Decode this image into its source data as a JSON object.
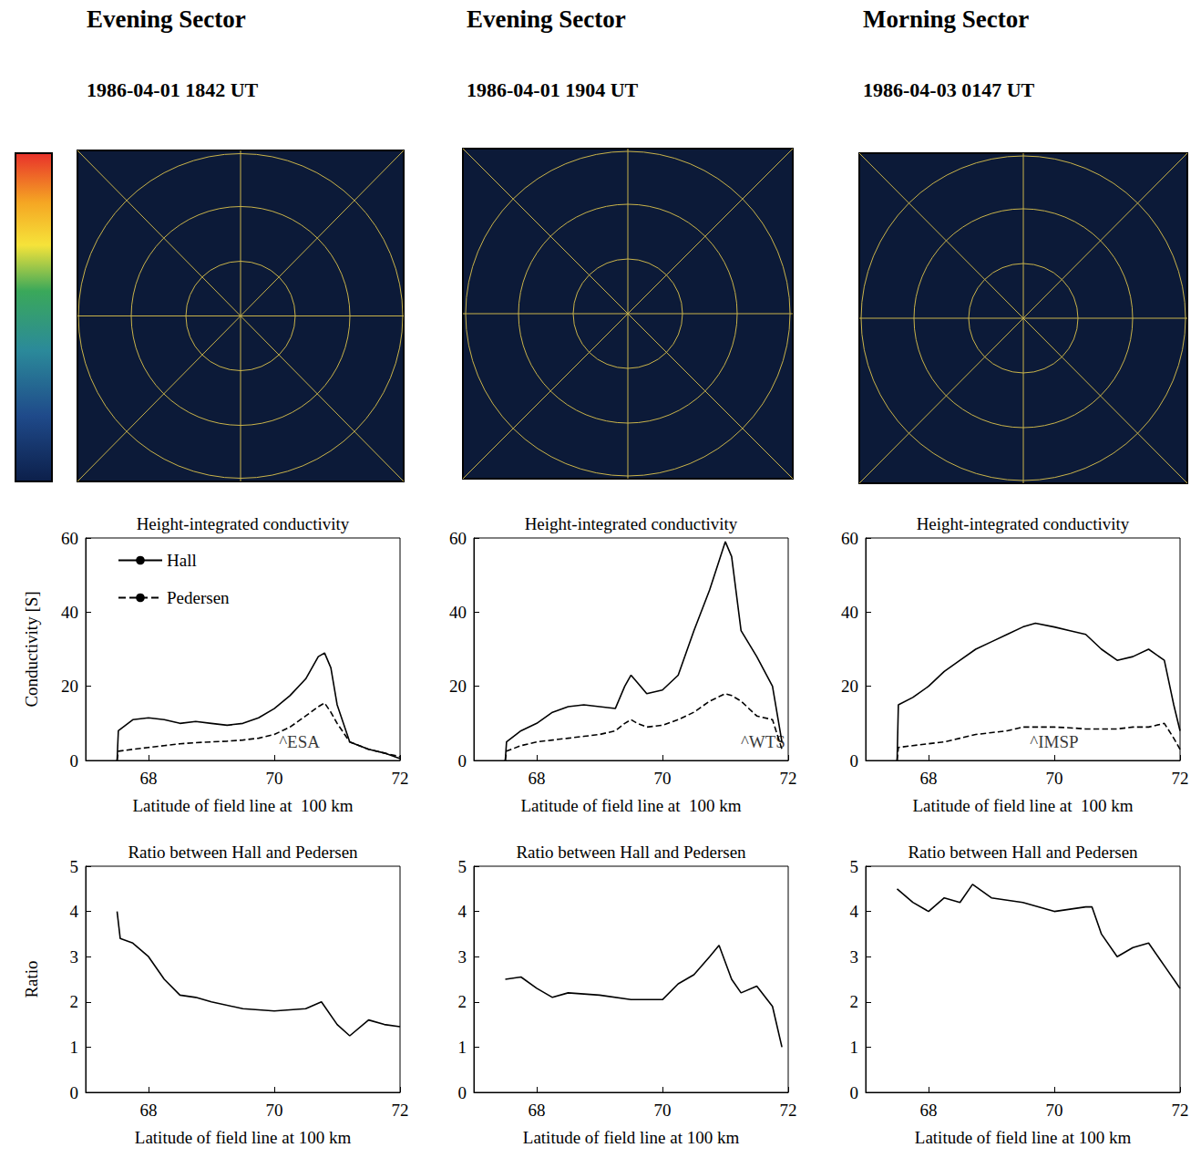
{
  "columns": [
    {
      "sector": "Evening Sector",
      "time": "1986-04-01 1842 UT"
    },
    {
      "sector": "Evening Sector",
      "time": "1986-04-01 1904 UT"
    },
    {
      "sector": "Morning Sector",
      "time": "1986-04-03 0147 UT"
    }
  ],
  "chart_data": [
    {
      "type": "line",
      "title": "Height-integrated conductivity",
      "x_label": "Latitude of field line at  100 km",
      "y_label": "Conductivity [S]",
      "xlim": [
        67,
        72
      ],
      "xticks": [
        68,
        70,
        72
      ],
      "ylim": [
        0,
        60
      ],
      "yticks": [
        0,
        20,
        40,
        60
      ],
      "grid": false,
      "legend": "upper left",
      "x": [
        67.5,
        67.52,
        67.75,
        68,
        68.25,
        68.5,
        68.75,
        69,
        69.25,
        69.5,
        69.75,
        70,
        70.25,
        70.5,
        70.7,
        70.8,
        70.9,
        71,
        71.2,
        71.5,
        71.75,
        72
      ],
      "series": [
        {
          "name": "Hall",
          "color": "#000000",
          "line_style": "solid",
          "marker": "none",
          "values": [
            0,
            8,
            11,
            11.5,
            11,
            10,
            10.5,
            10,
            9.5,
            10,
            11.5,
            14,
            17.5,
            22,
            28,
            29,
            25,
            15,
            5,
            3,
            2,
            0.5
          ]
        },
        {
          "name": "Pedersen",
          "color": "#000000",
          "line_style": "dashed",
          "marker": "none",
          "values": [
            0,
            2.5,
            3,
            3.5,
            4,
            4.5,
            4.8,
            5,
            5.2,
            5.5,
            6,
            7,
            9,
            12,
            14.5,
            15.5,
            13,
            10,
            5,
            3,
            2,
            1
          ]
        }
      ],
      "annotations": [
        {
          "text": "^ESA",
          "x": 70.4,
          "y": 5
        }
      ]
    },
    {
      "type": "line",
      "title": "Height-integrated conductivity",
      "x_label": "Latitude of field line at  100 km",
      "xlim": [
        67,
        72
      ],
      "xticks": [
        68,
        70,
        72
      ],
      "ylim": [
        0,
        60
      ],
      "yticks": [
        0,
        20,
        40,
        60
      ],
      "grid": false,
      "x": [
        67.5,
        67.52,
        67.75,
        68,
        68.25,
        68.5,
        68.75,
        69,
        69.25,
        69.4,
        69.5,
        69.6,
        69.75,
        70,
        70.25,
        70.5,
        70.75,
        71,
        71.1,
        71.25,
        71.5,
        71.75,
        71.9
      ],
      "series": [
        {
          "name": "Hall",
          "color": "#000000",
          "line_style": "solid",
          "marker": "none",
          "values": [
            0,
            5,
            8,
            10,
            13,
            14.5,
            15,
            14.5,
            14,
            20,
            23,
            21,
            18,
            19,
            23,
            35,
            46,
            59,
            55,
            35,
            28,
            20,
            5
          ]
        },
        {
          "name": "Pedersen",
          "color": "#000000",
          "line_style": "dashed",
          "marker": "none",
          "values": [
            0,
            2.5,
            4,
            5,
            5.5,
            6,
            6.5,
            7,
            8,
            10,
            11,
            10,
            9,
            9.5,
            11,
            13,
            16,
            18,
            17.5,
            16,
            12,
            11,
            3
          ]
        }
      ],
      "annotations": [
        {
          "text": "^WTS",
          "x": 71.6,
          "y": 5
        }
      ]
    },
    {
      "type": "line",
      "title": "Height-integrated conductivity",
      "x_label": "Latitude of field line at  100 km",
      "xlim": [
        67,
        72
      ],
      "xticks": [
        68,
        70,
        72
      ],
      "ylim": [
        0,
        60
      ],
      "yticks": [
        0,
        20,
        40,
        60
      ],
      "grid": false,
      "x": [
        67.5,
        67.52,
        67.75,
        68,
        68.25,
        68.5,
        68.75,
        69,
        69.25,
        69.5,
        69.7,
        70,
        70.25,
        70.5,
        70.75,
        71,
        71.25,
        71.5,
        71.75,
        71.9,
        72
      ],
      "series": [
        {
          "name": "Hall",
          "color": "#000000",
          "line_style": "solid",
          "marker": "none",
          "values": [
            0,
            15,
            17,
            20,
            24,
            27,
            30,
            32,
            34,
            36,
            37,
            36,
            35,
            34,
            30,
            27,
            28,
            30,
            27,
            15,
            8
          ]
        },
        {
          "name": "Pedersen",
          "color": "#000000",
          "line_style": "dashed",
          "marker": "none",
          "values": [
            0,
            3.5,
            4,
            4.5,
            5,
            6,
            7,
            7.5,
            8,
            9,
            9,
            9,
            8.8,
            8.5,
            8.5,
            8.5,
            9,
            9,
            10,
            6,
            3
          ]
        }
      ],
      "annotations": [
        {
          "text": "^IMSP",
          "x": 70,
          "y": 5
        }
      ]
    },
    {
      "type": "line",
      "title": "Ratio between Hall and Pedersen",
      "x_label": "Latitude of field line at 100 km",
      "y_label": "Ratio",
      "xlim": [
        67,
        72
      ],
      "xticks": [
        68,
        70,
        72
      ],
      "ylim": [
        0,
        5
      ],
      "yticks": [
        0,
        1,
        2,
        3,
        4,
        5
      ],
      "grid": false,
      "color": "#000000",
      "line_style": "solid",
      "marker": "none",
      "x": [
        67.5,
        67.55,
        67.75,
        68,
        68.25,
        68.5,
        68.75,
        69,
        69.5,
        70,
        70.5,
        70.75,
        71,
        71.2,
        71.5,
        71.75,
        72
      ],
      "values": [
        4,
        3.4,
        3.3,
        3,
        2.5,
        2.15,
        2.1,
        2,
        1.85,
        1.8,
        1.85,
        2,
        1.5,
        1.25,
        1.6,
        1.5,
        1.45
      ]
    },
    {
      "type": "line",
      "title": "Ratio between Hall and Pedersen",
      "x_label": "Latitude of field line at 100 km",
      "xlim": [
        67,
        72
      ],
      "xticks": [
        68,
        70,
        72
      ],
      "ylim": [
        0,
        5
      ],
      "yticks": [
        0,
        1,
        2,
        3,
        4,
        5
      ],
      "grid": false,
      "color": "#000000",
      "line_style": "solid",
      "marker": "none",
      "x": [
        67.5,
        67.75,
        68,
        68.25,
        68.5,
        69,
        69.5,
        70,
        70.25,
        70.5,
        70.75,
        70.9,
        71.1,
        71.25,
        71.5,
        71.75,
        71.9
      ],
      "values": [
        2.5,
        2.55,
        2.3,
        2.1,
        2.2,
        2.15,
        2.05,
        2.05,
        2.4,
        2.6,
        3,
        3.25,
        2.5,
        2.2,
        2.35,
        1.9,
        1
      ]
    },
    {
      "type": "line",
      "title": "Ratio between Hall and Pedersen",
      "x_label": "Latitude of field line at 100 km",
      "xlim": [
        67,
        72
      ],
      "xticks": [
        68,
        70,
        72
      ],
      "ylim": [
        0,
        5
      ],
      "yticks": [
        0,
        1,
        2,
        3,
        4,
        5
      ],
      "grid": false,
      "color": "#000000",
      "line_style": "solid",
      "marker": "none",
      "x": [
        67.5,
        67.75,
        68,
        68.25,
        68.5,
        68.7,
        69,
        69.5,
        70,
        70.5,
        70.6,
        70.75,
        71,
        71.25,
        71.5,
        71.75,
        72
      ],
      "values": [
        4.5,
        4.2,
        4,
        4.3,
        4.2,
        4.6,
        4.3,
        4.2,
        4,
        4.1,
        4.1,
        3.5,
        3,
        3.2,
        3.3,
        2.8,
        2.3
      ]
    }
  ]
}
